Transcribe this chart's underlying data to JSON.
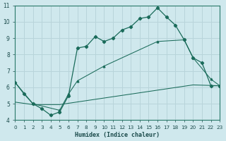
{
  "xlabel": "Humidex (Indice chaleur)",
  "xlim": [
    0,
    23
  ],
  "ylim": [
    4,
    11
  ],
  "xticks": [
    0,
    1,
    2,
    3,
    4,
    5,
    6,
    7,
    8,
    9,
    10,
    11,
    12,
    13,
    14,
    15,
    16,
    17,
    18,
    19,
    20,
    21,
    22,
    23
  ],
  "yticks": [
    4,
    5,
    6,
    7,
    8,
    9,
    10,
    11
  ],
  "bg_color": "#cfe8ed",
  "grid_color": "#b8d4da",
  "line_color": "#1a6b5a",
  "line1_x": [
    0,
    1,
    2,
    3,
    4,
    5,
    6,
    7,
    8,
    9,
    10,
    11,
    12,
    13,
    14,
    15,
    16,
    17,
    18,
    19,
    20,
    21,
    22,
    23
  ],
  "line1_y": [
    6.3,
    5.6,
    5.0,
    4.7,
    4.3,
    4.5,
    5.5,
    8.4,
    8.5,
    9.1,
    8.8,
    9.0,
    9.5,
    9.7,
    10.2,
    10.3,
    10.85,
    10.3,
    9.8,
    8.9,
    7.8,
    7.5,
    6.1,
    6.1
  ],
  "line2_x": [
    0,
    2,
    5,
    6,
    7,
    10,
    16,
    19,
    20,
    22,
    23
  ],
  "line2_y": [
    6.3,
    5.0,
    4.6,
    5.6,
    6.4,
    7.3,
    8.8,
    8.9,
    7.8,
    6.5,
    6.1
  ],
  "line3_x": [
    0,
    2,
    5,
    10,
    15,
    20,
    23
  ],
  "line3_y": [
    5.1,
    4.95,
    4.95,
    5.35,
    5.75,
    6.15,
    6.1
  ]
}
